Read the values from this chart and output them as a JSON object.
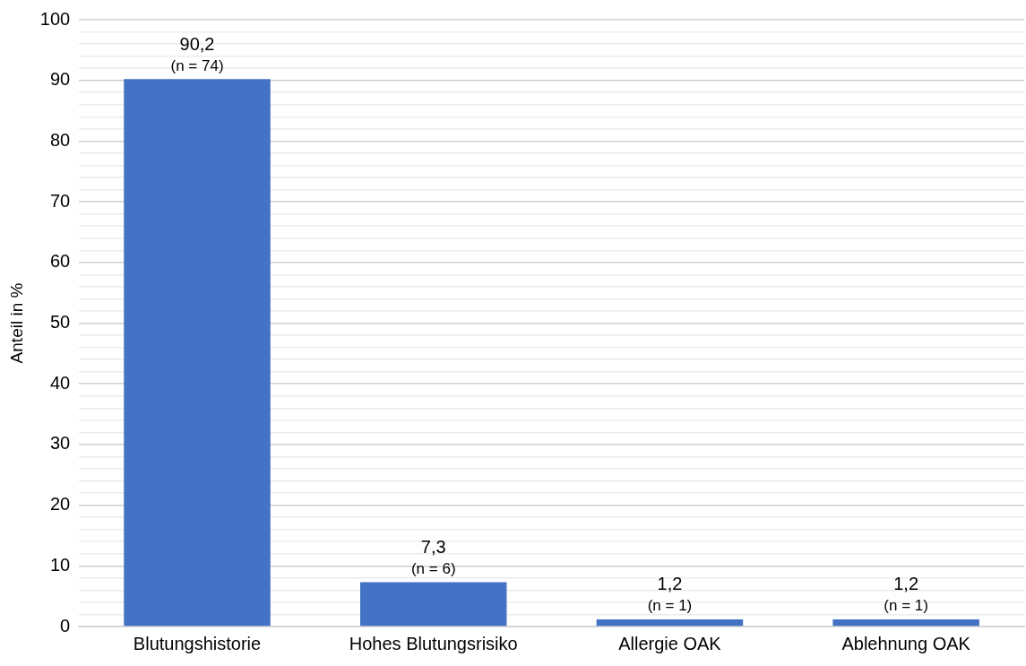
{
  "chart_data": {
    "type": "bar",
    "ylabel": "Anteil in %",
    "categories": [
      "Blutungshistorie",
      "Hohes Blutungsrisiko",
      "Allergie OAK",
      "Ablehnung OAK"
    ],
    "values": [
      90.2,
      7.3,
      1.2,
      1.2
    ],
    "value_labels": [
      "90,2\n(n = 74)",
      "7,3\n(n = 6)",
      "1,2\n(n = 1)",
      "1,2\n(n = 1)"
    ],
    "color": "#4472c4",
    "ylim": [
      0,
      100
    ],
    "yticks": [
      0,
      {
        "value": 2,
        "label": null
      },
      {
        "value": 4,
        "label": null
      },
      {
        "value": 6,
        "label": null
      },
      {
        "value": 8,
        "label": null
      },
      10,
      {
        "value": 12,
        "label": null
      },
      {
        "value": 14,
        "label": null
      },
      {
        "value": 16,
        "label": null
      },
      {
        "value": 18,
        "label": null
      },
      20,
      {
        "value": 22,
        "label": null
      },
      {
        "value": 24,
        "label": null
      },
      {
        "value": 26,
        "label": null
      },
      {
        "value": 28,
        "label": null
      },
      30,
      {
        "value": 32,
        "label": null
      },
      {
        "value": 34,
        "label": null
      },
      {
        "value": 36,
        "label": null
      },
      {
        "value": 38,
        "label": null
      },
      40,
      {
        "value": 42,
        "label": null
      },
      {
        "value": 44,
        "label": null
      },
      {
        "value": 46,
        "label": null
      },
      {
        "value": 48,
        "label": null
      },
      50,
      {
        "value": 52,
        "label": null
      },
      {
        "value": 54,
        "label": null
      },
      {
        "value": 56,
        "label": null
      },
      {
        "value": 58,
        "label": null
      },
      60,
      {
        "value": 62,
        "label": null
      },
      {
        "value": 64,
        "label": null
      },
      {
        "value": 66,
        "label": null
      },
      {
        "value": 68,
        "label": null
      },
      70,
      {
        "value": 72,
        "label": null
      },
      {
        "value": 74,
        "label": null
      },
      {
        "value": 76,
        "label": null
      },
      {
        "value": 78,
        "label": null
      },
      80,
      {
        "value": 82,
        "label": null
      },
      {
        "value": 84,
        "label": null
      },
      {
        "value": 86,
        "label": null
      },
      {
        "value": 88,
        "label": null
      },
      90,
      {
        "value": 92,
        "label": null
      },
      {
        "value": 94,
        "label": null
      },
      {
        "value": 96,
        "label": null
      },
      {
        "value": 98,
        "label": null
      },
      100
    ],
    "grid": "y",
    "legend": false
  }
}
